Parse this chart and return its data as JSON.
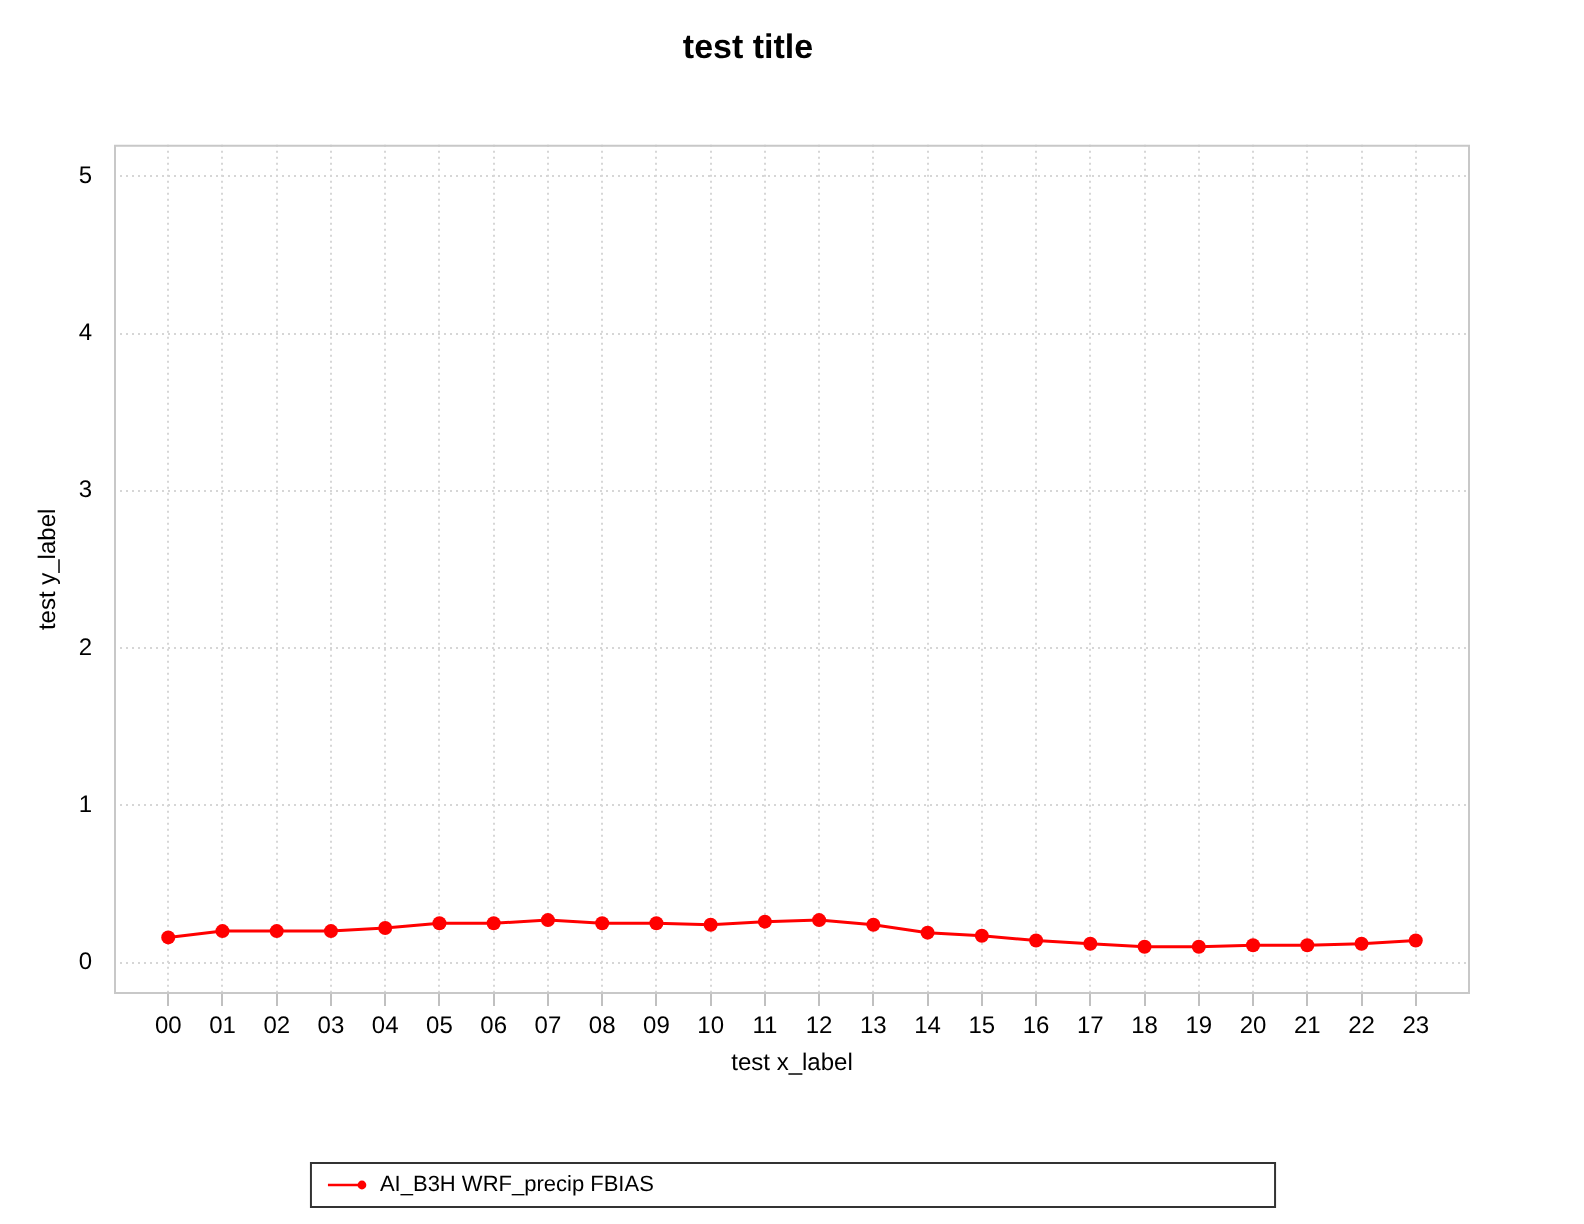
{
  "chart_data": {
    "type": "line",
    "title": "test title",
    "xlabel": "test x_label",
    "ylabel": "test y_label",
    "categories": [
      "00",
      "01",
      "02",
      "03",
      "04",
      "05",
      "06",
      "07",
      "08",
      "09",
      "10",
      "11",
      "12",
      "13",
      "14",
      "15",
      "16",
      "17",
      "18",
      "19",
      "20",
      "21",
      "22",
      "23"
    ],
    "series": [
      {
        "name": "AI_B3H WRF_precip FBIAS",
        "color": "#ff0000",
        "values": [
          0.16,
          0.2,
          0.2,
          0.2,
          0.22,
          0.25,
          0.25,
          0.27,
          0.25,
          0.25,
          0.24,
          0.26,
          0.27,
          0.24,
          0.19,
          0.17,
          0.14,
          0.12,
          0.1,
          0.1,
          0.11,
          0.11,
          0.12,
          0.14
        ]
      }
    ],
    "ylim": [
      -0.2,
      5.2
    ],
    "yticks": [
      0,
      1,
      2,
      3,
      4,
      5
    ],
    "grid": true,
    "legend": "bottom",
    "marker": "circle",
    "line_style": "solid"
  }
}
